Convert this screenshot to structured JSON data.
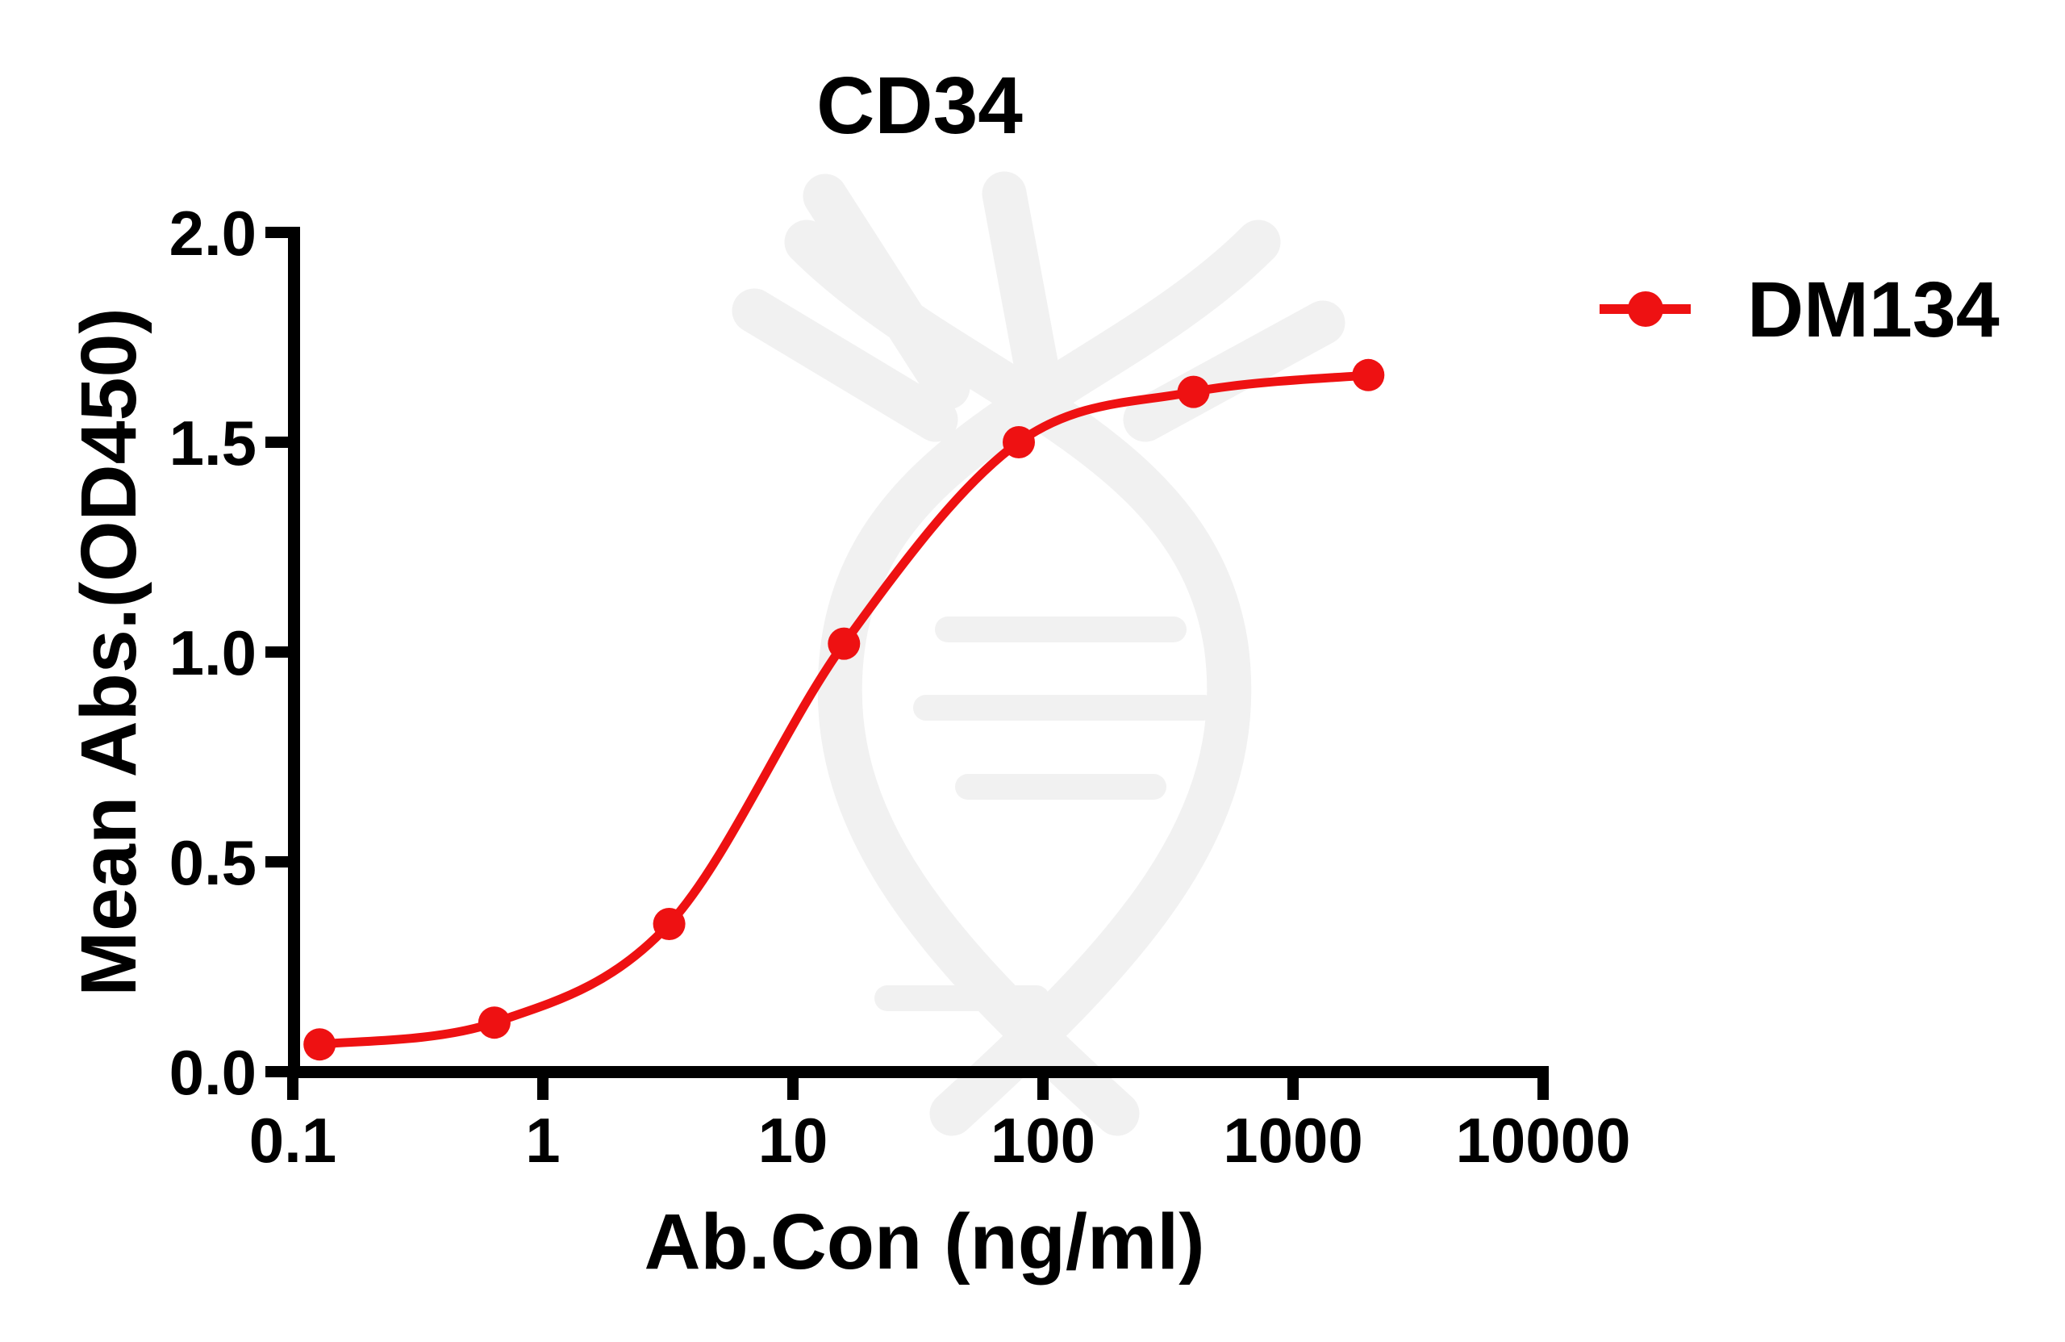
{
  "title": "CD34",
  "chart_data": {
    "type": "line",
    "title": "CD34",
    "xlabel": "Ab.Con (ng/ml)",
    "ylabel": "Mean Abs.(OD450)",
    "x_scale": "log",
    "xlim": [
      0.1,
      10000
    ],
    "ylim": [
      0.0,
      2.0
    ],
    "x_ticks": [
      "0.1",
      "1",
      "10",
      "100",
      "1000",
      "10000"
    ],
    "y_ticks": [
      "0.0",
      "0.5",
      "1.0",
      "1.5",
      "2.0"
    ],
    "grid": "off",
    "legend_position": "right",
    "series": [
      {
        "name": "DM134",
        "color": "#ee1112",
        "marker": "circle",
        "x": [
          0.128,
          0.64,
          3.2,
          16,
          80,
          400,
          2000
        ],
        "y": [
          0.065,
          0.117,
          0.352,
          1.02,
          1.5,
          1.62,
          1.66
        ]
      }
    ]
  },
  "legend": {
    "label": "DM134"
  },
  "watermark": {
    "name": "dna-helix",
    "color": "#f1f1f1"
  },
  "colors": {
    "series_red": "#ee1112",
    "axis": "#000000",
    "background": "#ffffff"
  }
}
